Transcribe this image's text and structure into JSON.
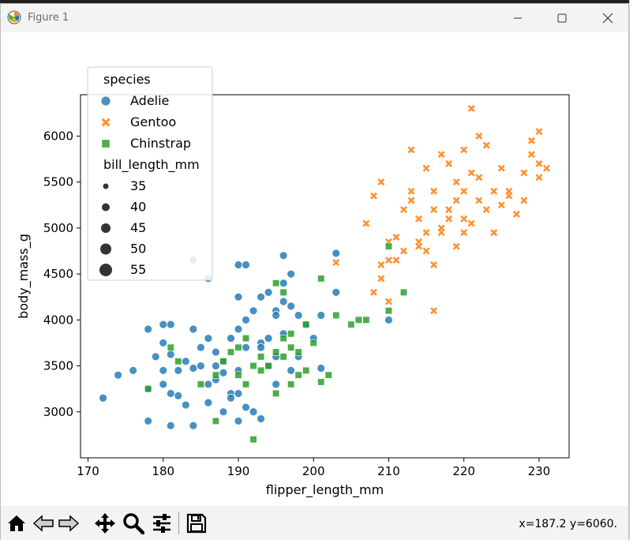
{
  "window": {
    "title": "Figure 1",
    "coord_readout": "x=187.2 y=6060."
  },
  "toolbar": {
    "buttons": [
      {
        "name": "home-icon"
      },
      {
        "name": "back-arrow-icon"
      },
      {
        "name": "forward-arrow-icon"
      },
      {
        "name": "pan-icon"
      },
      {
        "name": "zoom-icon"
      },
      {
        "name": "configure-subplots-icon"
      },
      {
        "name": "save-icon"
      }
    ]
  },
  "chart_data": {
    "type": "scatter",
    "xlabel": "flipper_length_mm",
    "ylabel": "body_mass_g",
    "xlim": [
      169,
      234
    ],
    "ylim": [
      2500,
      6450
    ],
    "xticks": [
      170,
      180,
      190,
      200,
      210,
      220,
      230
    ],
    "yticks": [
      3000,
      3500,
      4000,
      4500,
      5000,
      5500,
      6000
    ],
    "grid": false,
    "legend": {
      "placement": "upper-left",
      "hue_title": "species",
      "size_title": "bill_length_mm",
      "size_levels": [
        "35",
        "40",
        "45",
        "50",
        "55"
      ]
    },
    "series": [
      {
        "name": "Adelie",
        "marker": "circle",
        "color": "#1f77b4",
        "points": [
          [
            172,
            3150
          ],
          [
            174,
            3400
          ],
          [
            176,
            3450
          ],
          [
            178,
            2900
          ],
          [
            178,
            3250
          ],
          [
            178,
            3900
          ],
          [
            179,
            3600
          ],
          [
            180,
            3300
          ],
          [
            180,
            3450
          ],
          [
            180,
            3750
          ],
          [
            180,
            3950
          ],
          [
            181,
            2850
          ],
          [
            181,
            3200
          ],
          [
            181,
            3625
          ],
          [
            182,
            3175
          ],
          [
            182,
            3450
          ],
          [
            183,
            3075
          ],
          [
            184,
            2850
          ],
          [
            184,
            3900
          ],
          [
            184,
            4650
          ],
          [
            185,
            3700
          ],
          [
            186,
            3100
          ],
          [
            186,
            4450
          ],
          [
            187,
            3350
          ],
          [
            187,
            3500
          ],
          [
            188,
            3000
          ],
          [
            188,
            3425
          ],
          [
            189,
            3200
          ],
          [
            189,
            3800
          ],
          [
            190,
            2900
          ],
          [
            190,
            3450
          ],
          [
            190,
            3900
          ],
          [
            190,
            4600
          ],
          [
            191,
            3050
          ],
          [
            191,
            3700
          ],
          [
            191,
            4600
          ],
          [
            192,
            3000
          ],
          [
            193,
            2925
          ],
          [
            193,
            3750
          ],
          [
            193,
            4250
          ],
          [
            194,
            3500
          ],
          [
            195,
            3600
          ],
          [
            195,
            4100
          ],
          [
            196,
            3850
          ],
          [
            196,
            4400
          ],
          [
            196,
            4700
          ],
          [
            197,
            3450
          ],
          [
            197,
            4500
          ],
          [
            198,
            3600
          ],
          [
            199,
            3950
          ],
          [
            200,
            3800
          ],
          [
            201,
            3475
          ],
          [
            201,
            4050
          ],
          [
            203,
            4725
          ],
          [
            203,
            4300
          ],
          [
            210,
            4000
          ],
          [
            186,
            3800
          ],
          [
            190,
            4250
          ],
          [
            187,
            3650
          ],
          [
            194,
            4300
          ],
          [
            184,
            3475
          ],
          [
            183,
            3550
          ],
          [
            195,
            4050
          ],
          [
            186,
            3300
          ],
          [
            181,
            3950
          ],
          [
            192,
            4100
          ],
          [
            189,
            3150
          ],
          [
            193,
            3700
          ],
          [
            185,
            3500
          ],
          [
            195,
            3300
          ],
          [
            190,
            3200
          ],
          [
            196,
            4200
          ],
          [
            188,
            3550
          ],
          [
            191,
            4000
          ],
          [
            194,
            3800
          ],
          [
            198,
            4050
          ],
          [
            197,
            4150
          ]
        ]
      },
      {
        "name": "Gentoo",
        "marker": "x",
        "color": "#ff7f0e",
        "points": [
          [
            203,
            4625
          ],
          [
            207,
            5050
          ],
          [
            208,
            4300
          ],
          [
            208,
            5350
          ],
          [
            209,
            4450
          ],
          [
            209,
            5500
          ],
          [
            210,
            4850
          ],
          [
            210,
            4200
          ],
          [
            211,
            4650
          ],
          [
            212,
            5200
          ],
          [
            212,
            4750
          ],
          [
            213,
            5850
          ],
          [
            213,
            5400
          ],
          [
            214,
            4850
          ],
          [
            214,
            5100
          ],
          [
            215,
            5650
          ],
          [
            215,
            4950
          ],
          [
            216,
            5400
          ],
          [
            216,
            4100
          ],
          [
            217,
            5800
          ],
          [
            217,
            4950
          ],
          [
            218,
            5700
          ],
          [
            218,
            5200
          ],
          [
            219,
            5300
          ],
          [
            219,
            5500
          ],
          [
            220,
            5400
          ],
          [
            220,
            5850
          ],
          [
            220,
            5100
          ],
          [
            221,
            6300
          ],
          [
            221,
            5600
          ],
          [
            222,
            6000
          ],
          [
            222,
            5550
          ],
          [
            223,
            5900
          ],
          [
            224,
            5400
          ],
          [
            225,
            5650
          ],
          [
            225,
            5250
          ],
          [
            226,
            5350
          ],
          [
            227,
            5150
          ],
          [
            228,
            5600
          ],
          [
            228,
            5300
          ],
          [
            229,
            5950
          ],
          [
            229,
            5800
          ],
          [
            230,
            6050
          ],
          [
            230,
            5550
          ],
          [
            230,
            5700
          ],
          [
            231,
            5650
          ],
          [
            210,
            4650
          ],
          [
            211,
            4900
          ],
          [
            215,
            4750
          ],
          [
            216,
            4600
          ],
          [
            219,
            4800
          ],
          [
            221,
            5050
          ],
          [
            224,
            4950
          ],
          [
            213,
            5300
          ],
          [
            216,
            5200
          ],
          [
            218,
            5100
          ],
          [
            222,
            5300
          ],
          [
            226,
            5400
          ],
          [
            209,
            4600
          ],
          [
            214,
            4800
          ],
          [
            217,
            5000
          ],
          [
            220,
            4950
          ],
          [
            223,
            5200
          ]
        ]
      },
      {
        "name": "Chinstrap",
        "marker": "square",
        "color": "#2ca02c",
        "points": [
          [
            178,
            3250
          ],
          [
            181,
            3700
          ],
          [
            182,
            3550
          ],
          [
            185,
            3300
          ],
          [
            187,
            2900
          ],
          [
            187,
            3400
          ],
          [
            188,
            3550
          ],
          [
            189,
            3650
          ],
          [
            190,
            3400
          ],
          [
            190,
            3700
          ],
          [
            191,
            3300
          ],
          [
            192,
            2700
          ],
          [
            192,
            3500
          ],
          [
            193,
            3450
          ],
          [
            194,
            3500
          ],
          [
            195,
            3650
          ],
          [
            195,
            4400
          ],
          [
            196,
            3600
          ],
          [
            196,
            3800
          ],
          [
            197,
            3300
          ],
          [
            197,
            3850
          ],
          [
            198,
            3400
          ],
          [
            198,
            3650
          ],
          [
            199,
            3450
          ],
          [
            200,
            3750
          ],
          [
            201,
            3325
          ],
          [
            201,
            4450
          ],
          [
            202,
            3400
          ],
          [
            203,
            4050
          ],
          [
            205,
            3950
          ],
          [
            206,
            4000
          ],
          [
            207,
            4000
          ],
          [
            210,
            4100
          ],
          [
            210,
            4800
          ],
          [
            212,
            4300
          ],
          [
            193,
            3600
          ],
          [
            195,
            3200
          ],
          [
            191,
            3800
          ],
          [
            199,
            3950
          ],
          [
            196,
            4300
          ],
          [
            197,
            3700
          ]
        ]
      }
    ]
  }
}
